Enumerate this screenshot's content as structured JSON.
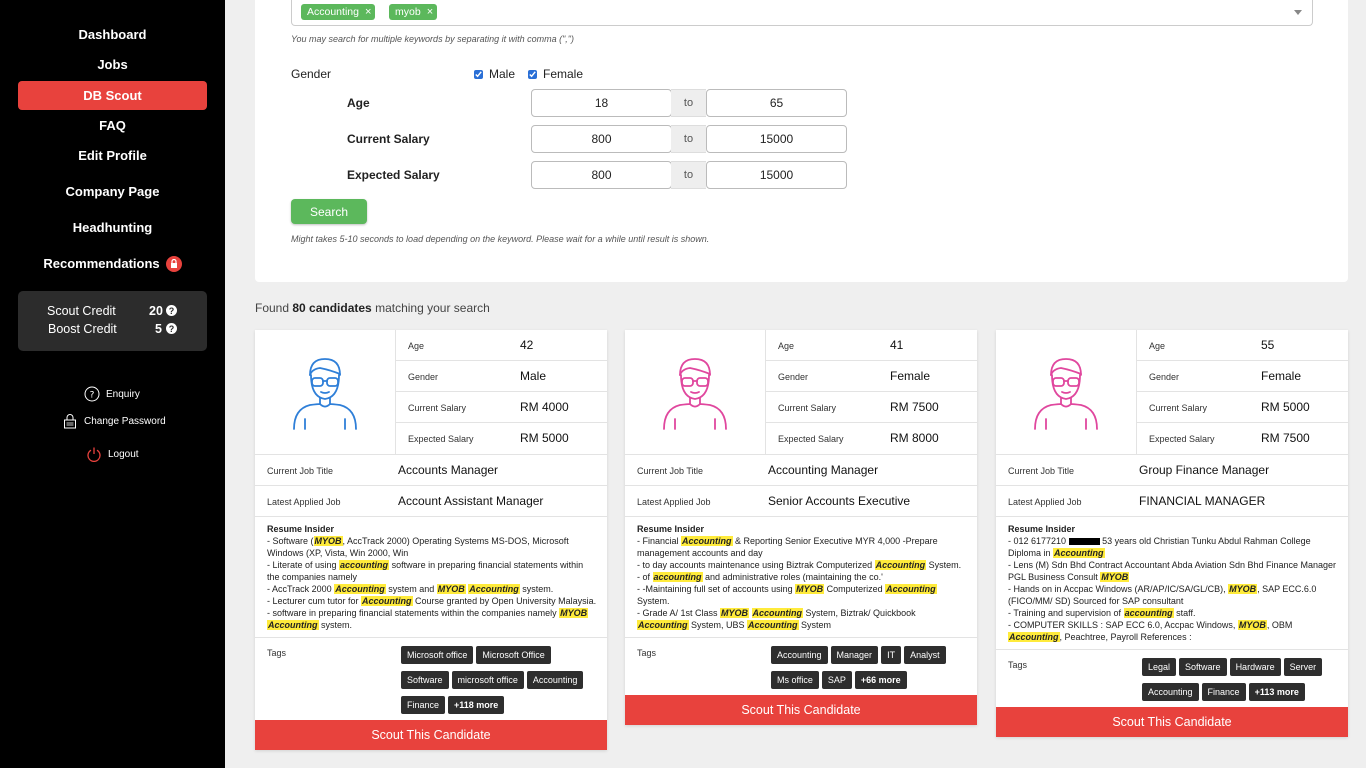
{
  "sidebar": {
    "items": [
      {
        "label": "Dashboard"
      },
      {
        "label": "Jobs"
      },
      {
        "label": "DB Scout"
      },
      {
        "label": "FAQ"
      },
      {
        "label": "Edit Profile"
      },
      {
        "label": "Company Page"
      },
      {
        "label": "Headhunting"
      },
      {
        "label": "Recommendations"
      }
    ],
    "active_color": "#e8423d",
    "credits": {
      "scout_label": "Scout Credit",
      "scout_value": "20",
      "boost_label": "Boost Credit",
      "boost_value": "5"
    },
    "footer": {
      "enquiry": "Enquiry",
      "change_password": "Change Password",
      "logout": "Logout"
    }
  },
  "search": {
    "keywords": [
      "Accounting",
      "myob"
    ],
    "keyword_hint": "You may search for multiple keywords by separating it with comma (\",\")",
    "gender_label": "Gender",
    "gender_options": [
      {
        "label": "Male",
        "checked": true
      },
      {
        "label": "Female",
        "checked": true
      }
    ],
    "age_label": "Age",
    "age_from": "18",
    "age_to": "65",
    "current_salary_label": "Current Salary",
    "current_salary_from": "800",
    "current_salary_to": "15000",
    "expected_salary_label": "Expected Salary",
    "expected_salary_from": "800",
    "expected_salary_to": "15000",
    "to_label": "to",
    "button_label": "Search",
    "load_hint": "Might takes 5-10 seconds to load depending on the keyword. Please wait for a while until result is shown."
  },
  "results": {
    "prefix": "Found ",
    "count_text": "80 candidates",
    "suffix": " matching your search"
  },
  "labels": {
    "age": "Age",
    "gender": "Gender",
    "current_salary": "Current Salary",
    "expected_salary": "Expected Salary",
    "current_job_title": "Current Job Title",
    "latest_applied_job": "Latest Applied Job",
    "resume_insider": "Resume Insider",
    "tags": "Tags",
    "scout_button": "Scout This Candidate"
  },
  "candidates": [
    {
      "avatar_color": "#2f7fd8",
      "age": "42",
      "gender": "Male",
      "current_salary": "RM 4000",
      "expected_salary": "RM 5000",
      "current_job_title": "Accounts Manager",
      "latest_applied_job": "Account Assistant Manager",
      "resume_html": [
        "- Software (<mark>MYOB</mark>, AccTrack 2000) Operating Systems MS-DOS, Microsoft Windows (XP, Vista, Win 2000, Win",
        "- Literate of using <mark>accounting</mark> software in preparing financial statements within the companies namely",
        "- AccTrack 2000 <mark>Accounting</mark> system and <mark>MYOB</mark> <mark>Accounting</mark> system.",
        "- Lecturer cum tutor for <mark>Accounting</mark> Course granted by Open University Malaysia.",
        "- software in preparing financial statements within the companies namely <mark>MYOB</mark> <mark>Accounting</mark> system."
      ],
      "tags": [
        "Microsoft office",
        "Microsoft Office",
        "Software",
        "microsoft office",
        "Accounting",
        "Finance"
      ],
      "more_tags": "+118 more"
    },
    {
      "avatar_color": "#e0479e",
      "age": "41",
      "gender": "Female",
      "current_salary": "RM 7500",
      "expected_salary": "RM 8000",
      "current_job_title": "Accounting Manager",
      "latest_applied_job": "Senior Accounts Executive",
      "resume_html": [
        "- Financial <mark>Accounting</mark> &amp; Reporting Senior Executive MYR 4,000 -Prepare management accounts and day",
        "- to day accounts maintenance using Biztrak Computerized <mark>Accounting</mark> System.",
        "- of <mark>accounting</mark> and administrative roles (maintaining the co.'",
        "- -Maintaining full set of accounts using <mark>MYOB</mark> Computerized <mark>Accounting</mark> System.",
        "- Grade A/ 1st Class <mark>MYOB</mark> <mark>Accounting</mark> System, Biztrak/ Quickbook <mark>Accounting</mark> System, UBS <mark>Accounting</mark> System"
      ],
      "tags": [
        "Accounting",
        "Manager",
        "IT",
        "Analyst",
        "Ms office",
        "SAP"
      ],
      "more_tags": "+66 more"
    },
    {
      "avatar_color": "#e0479e",
      "age": "55",
      "gender": "Female",
      "current_salary": "RM 5000",
      "expected_salary": "RM 7500",
      "current_job_title": "Group Finance Manager",
      "latest_applied_job": "FINANCIAL MANAGER",
      "resume_html": [
        "- 012 6177210 <span style=\"display:inline-block;width:31px;height:7px;background:#000;vertical-align:middle;\"></span> 53 years old Christian Tunku Abdul Rahman College Diploma in <mark>Accounting</mark>",
        "- Lens (M) Sdn Bhd Contract Accountant Abda Aviation Sdn Bhd Finance Manager PGL Business Consult <mark>MYOB</mark>",
        "- Hands on in Accpac Windows (AR/AP/IC/SA/GL/CB), <mark>MYOB</mark>, SAP ECC.6.0 (FICO/MM/ SD) Sourced for SAP consultant",
        "- Training and supervision of <mark>accounting</mark> staff.",
        "- COMPUTER SKILLS : SAP ECC 6.0, Accpac Windows, <mark>MYOB</mark>, OBM <mark>Accounting</mark>, Peachtree, Payroll References :"
      ],
      "tags": [
        "Legal",
        "Software",
        "Hardware",
        "Server",
        "Accounting",
        "Finance"
      ],
      "more_tags": "+113 more"
    }
  ]
}
